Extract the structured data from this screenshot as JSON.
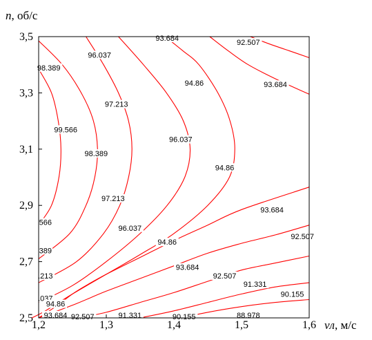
{
  "chart_data": {
    "type": "contour",
    "xlabel": "vл, м/с",
    "ylabel": "n, об/с",
    "xlim": [
      1.2,
      1.6
    ],
    "ylim": [
      2.5,
      3.5
    ],
    "x_ticks": [
      "1,2",
      "1,3",
      "1,4",
      "1,5",
      "1,6"
    ],
    "y_ticks": [
      "2,5",
      "2,7",
      "2,9",
      "3,1",
      "3,3",
      "3,5"
    ],
    "line_color": "#ff0000",
    "levels": [
      {
        "label": "99.566",
        "points": [
          [
            1.2,
            3.385
          ],
          [
            1.219,
            3.3
          ],
          [
            1.229,
            3.2
          ],
          [
            1.233,
            3.1
          ],
          [
            1.23,
            3.0
          ],
          [
            1.219,
            2.9
          ],
          [
            1.2,
            2.83
          ]
        ]
      },
      {
        "label": "98.389",
        "points": [
          [
            1.2,
            3.485
          ],
          [
            1.235,
            3.4
          ],
          [
            1.263,
            3.3
          ],
          [
            1.281,
            3.2
          ],
          [
            1.287,
            3.1
          ],
          [
            1.283,
            3.0
          ],
          [
            1.27,
            2.9
          ],
          [
            1.246,
            2.8
          ],
          [
            1.2,
            2.71
          ]
        ]
      },
      {
        "label": "97.213",
        "points": [
          [
            1.27,
            3.5
          ],
          [
            1.296,
            3.4
          ],
          [
            1.318,
            3.3
          ],
          [
            1.333,
            3.2
          ],
          [
            1.338,
            3.1
          ],
          [
            1.333,
            3.0
          ],
          [
            1.32,
            2.9
          ],
          [
            1.296,
            2.8
          ],
          [
            1.256,
            2.7
          ],
          [
            1.2,
            2.625
          ]
        ]
      },
      {
        "label": "96.037",
        "points": [
          [
            1.318,
            3.5
          ],
          [
            1.355,
            3.4
          ],
          [
            1.389,
            3.3
          ],
          [
            1.414,
            3.2
          ],
          [
            1.424,
            3.1
          ],
          [
            1.416,
            3.0
          ],
          [
            1.39,
            2.9
          ],
          [
            1.35,
            2.8
          ],
          [
            1.3,
            2.7
          ],
          [
            1.25,
            2.615
          ],
          [
            1.2,
            2.555
          ]
        ]
      },
      {
        "label": "94.86",
        "points": [
          [
            1.387,
            3.5
          ],
          [
            1.413,
            3.45
          ],
          [
            1.437,
            3.4
          ],
          [
            1.465,
            3.3
          ],
          [
            1.483,
            3.2
          ],
          [
            1.49,
            3.1
          ],
          [
            1.482,
            3.0
          ],
          [
            1.45,
            2.9
          ],
          [
            1.4,
            2.8
          ],
          [
            1.35,
            2.725
          ],
          [
            1.3,
            2.655
          ],
          [
            1.25,
            2.585
          ],
          [
            1.21,
            2.525
          ],
          [
            1.19,
            2.5
          ]
        ]
      },
      {
        "label": "93.684",
        "points": [
          [
            1.453,
            3.5
          ],
          [
            1.48,
            3.45
          ],
          [
            1.51,
            3.4
          ],
          [
            1.55,
            3.35
          ],
          [
            1.6,
            3.295
          ]
        ]
      },
      {
        "label": "92.507",
        "points": [
          [
            1.513,
            3.5
          ],
          [
            1.54,
            3.475
          ],
          [
            1.57,
            3.45
          ],
          [
            1.6,
            3.425
          ]
        ]
      },
      {
        "label": "93.684",
        "points": [
          [
            1.6,
            2.965
          ],
          [
            1.5,
            2.885
          ],
          [
            1.45,
            2.83
          ],
          [
            1.4,
            2.775
          ],
          [
            1.35,
            2.715
          ],
          [
            1.3,
            2.655
          ],
          [
            1.27,
            2.615
          ],
          [
            1.25,
            2.585
          ],
          [
            1.225,
            2.54
          ],
          [
            1.2,
            2.5
          ]
        ]
      },
      {
        "label": "92.507",
        "points": [
          [
            1.6,
            2.83
          ],
          [
            1.55,
            2.795
          ],
          [
            1.5,
            2.765
          ],
          [
            1.45,
            2.73
          ],
          [
            1.4,
            2.685
          ],
          [
            1.35,
            2.64
          ],
          [
            1.3,
            2.595
          ],
          [
            1.255,
            2.55
          ],
          [
            1.2,
            2.5
          ]
        ]
      },
      {
        "label": "91.331",
        "points": [
          [
            1.6,
            2.72
          ],
          [
            1.55,
            2.695
          ],
          [
            1.5,
            2.67
          ],
          [
            1.45,
            2.63
          ],
          [
            1.4,
            2.59
          ],
          [
            1.35,
            2.555
          ],
          [
            1.3,
            2.52
          ],
          [
            1.26,
            2.5
          ]
        ]
      },
      {
        "label": "90.155",
        "points": [
          [
            1.6,
            2.625
          ],
          [
            1.55,
            2.61
          ],
          [
            1.5,
            2.585
          ],
          [
            1.45,
            2.555
          ],
          [
            1.4,
            2.525
          ],
          [
            1.35,
            2.5
          ]
        ]
      },
      {
        "label": "88.978",
        "points": [
          [
            1.6,
            2.565
          ],
          [
            1.55,
            2.555
          ],
          [
            1.5,
            2.54
          ],
          [
            1.45,
            2.52
          ],
          [
            1.41,
            2.5
          ]
        ]
      }
    ],
    "labels": [
      {
        "text": "93.684",
        "x": 1.39,
        "y": 3.495
      },
      {
        "text": "92.507",
        "x": 1.51,
        "y": 3.48
      },
      {
        "text": "96.037",
        "x": 1.29,
        "y": 3.435
      },
      {
        "text": "98.389",
        "x": 1.215,
        "y": 3.39
      },
      {
        "text": "94.86",
        "x": 1.43,
        "y": 3.335
      },
      {
        "text": "93.684",
        "x": 1.55,
        "y": 3.33
      },
      {
        "text": "97.213",
        "x": 1.315,
        "y": 3.26
      },
      {
        "text": "99.566",
        "x": 1.24,
        "y": 3.17
      },
      {
        "text": "96.037",
        "x": 1.41,
        "y": 3.135
      },
      {
        "text": "98.389",
        "x": 1.285,
        "y": 3.085
      },
      {
        "text": "94.86",
        "x": 1.475,
        "y": 3.035
      },
      {
        "text": "97.213",
        "x": 1.31,
        "y": 2.925
      },
      {
        "text": "93.684",
        "x": 1.545,
        "y": 2.885
      },
      {
        "text": "566",
        "x": 1.21,
        "y": 2.84
      },
      {
        "text": "96.037",
        "x": 1.335,
        "y": 2.82
      },
      {
        "text": "92.507",
        "x": 1.59,
        "y": 2.79
      },
      {
        "text": "94.86",
        "x": 1.39,
        "y": 2.77
      },
      {
        "text": "389",
        "x": 1.21,
        "y": 2.74
      },
      {
        "text": "93.684",
        "x": 1.42,
        "y": 2.68
      },
      {
        "text": "92.507",
        "x": 1.475,
        "y": 2.65
      },
      {
        "text": ".213",
        "x": 1.21,
        "y": 2.65
      },
      {
        "text": "91.331",
        "x": 1.52,
        "y": 2.62
      },
      {
        "text": "90.155",
        "x": 1.575,
        "y": 2.585
      },
      {
        "text": ".037",
        "x": 1.21,
        "y": 2.57
      },
      {
        "text": "94.86",
        "x": 1.225,
        "y": 2.55
      },
      {
        "text": "93.684",
        "x": 1.225,
        "y": 2.51
      },
      {
        "text": "92.507",
        "x": 1.265,
        "y": 2.505
      },
      {
        "text": "91.331",
        "x": 1.335,
        "y": 2.51
      },
      {
        "text": "90.155",
        "x": 1.415,
        "y": 2.505
      },
      {
        "text": "88.978",
        "x": 1.51,
        "y": 2.51
      }
    ]
  }
}
